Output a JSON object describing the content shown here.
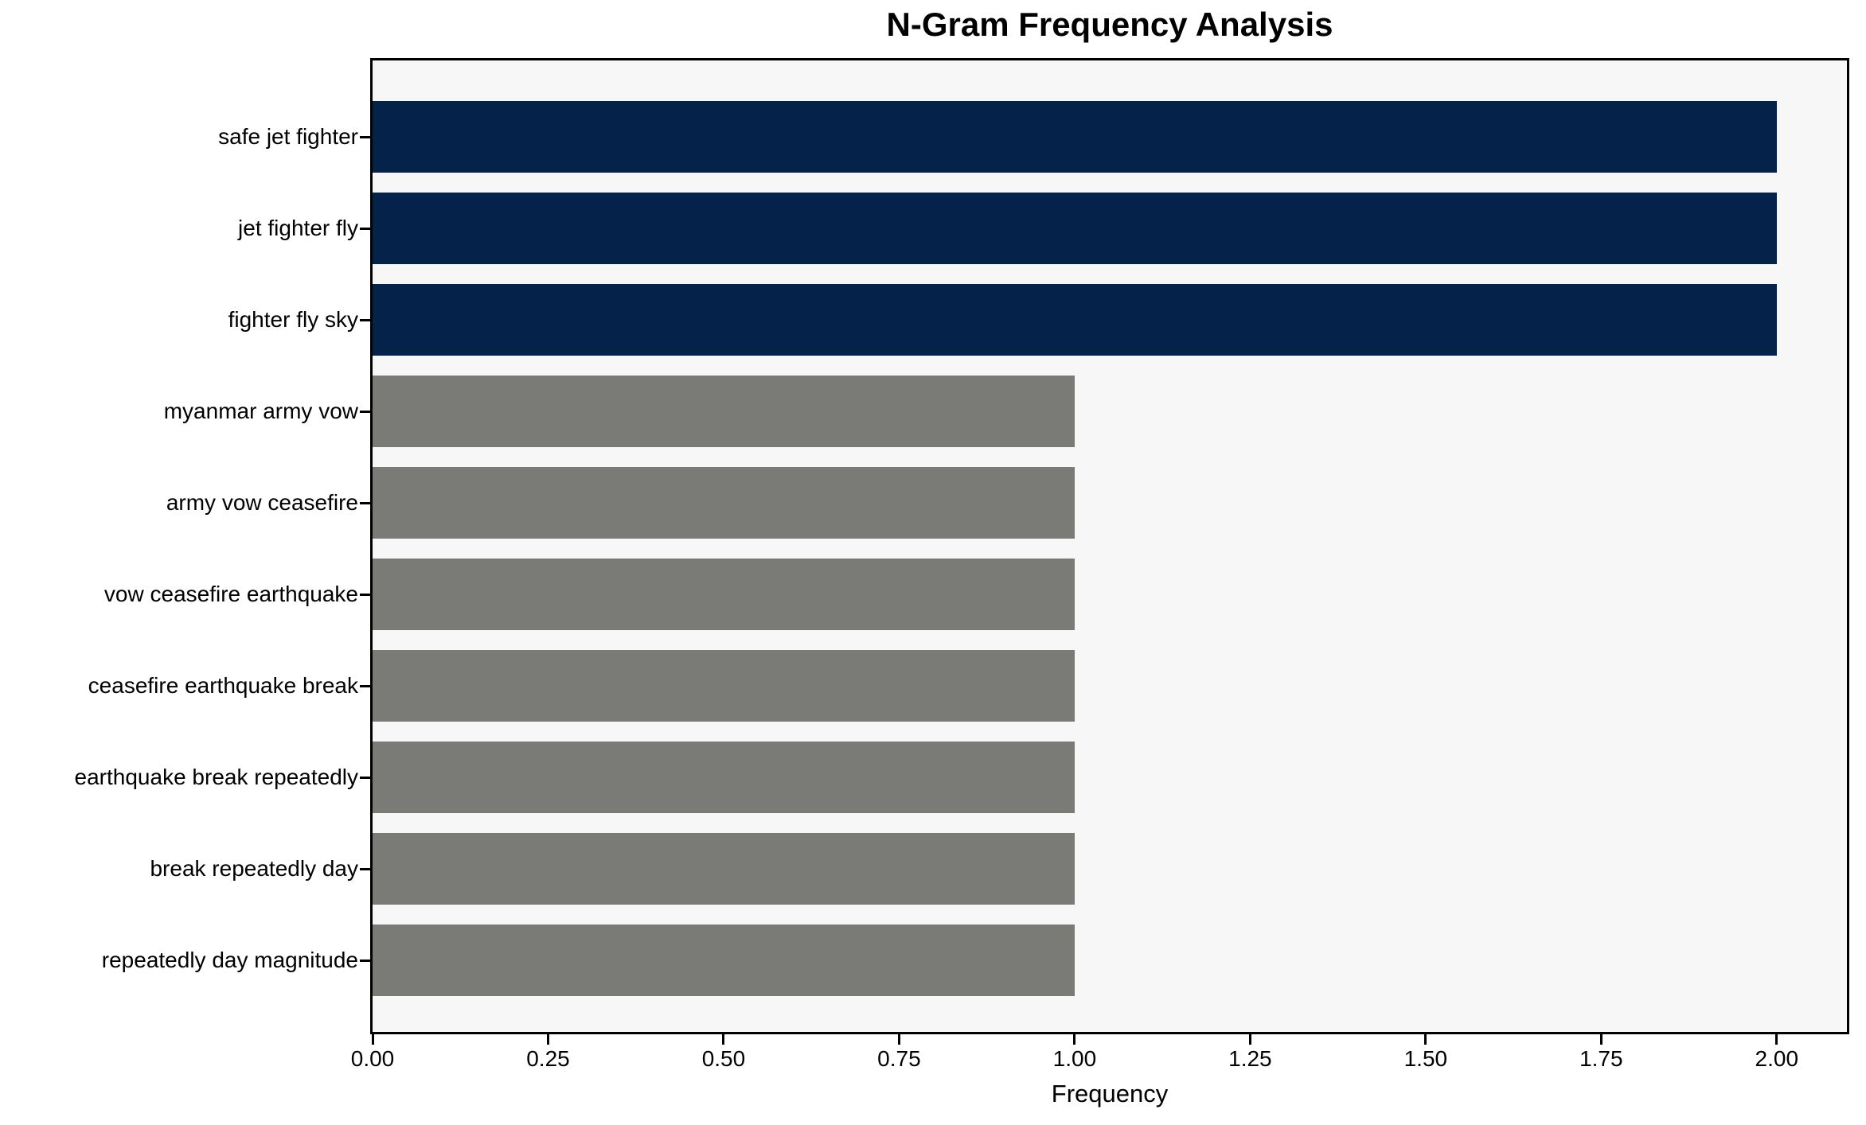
{
  "title": "N-Gram Frequency Analysis",
  "chart_data": {
    "type": "bar",
    "orientation": "horizontal",
    "title": "N-Gram Frequency Analysis",
    "xlabel": "Frequency",
    "ylabel": "",
    "categories": [
      "safe jet fighter",
      "jet fighter fly",
      "fighter fly sky",
      "myanmar army vow",
      "army vow ceasefire",
      "vow ceasefire earthquake",
      "ceasefire earthquake break",
      "earthquake break repeatedly",
      "break repeatedly day",
      "repeatedly day magnitude"
    ],
    "values": [
      2,
      2,
      2,
      1,
      1,
      1,
      1,
      1,
      1,
      1
    ],
    "bar_colors": [
      "#05234a",
      "#05234a",
      "#05234a",
      "#7a7a77",
      "#7a7a77",
      "#7a7a77",
      "#7a7a77",
      "#7a7a77",
      "#7a7a77",
      "#7a7a77"
    ],
    "xlim": [
      0,
      2.1
    ],
    "xticks": [
      0.0,
      0.25,
      0.5,
      0.75,
      1.0,
      1.25,
      1.5,
      1.75,
      2.0
    ],
    "xtick_labels": [
      "0.00",
      "0.25",
      "0.50",
      "0.75",
      "1.00",
      "1.25",
      "1.50",
      "1.75",
      "2.00"
    ],
    "grid": false,
    "legend": null,
    "plot_background": "#f7f7f7",
    "figure_background": "#ffffff",
    "axis_color": "#000000"
  }
}
